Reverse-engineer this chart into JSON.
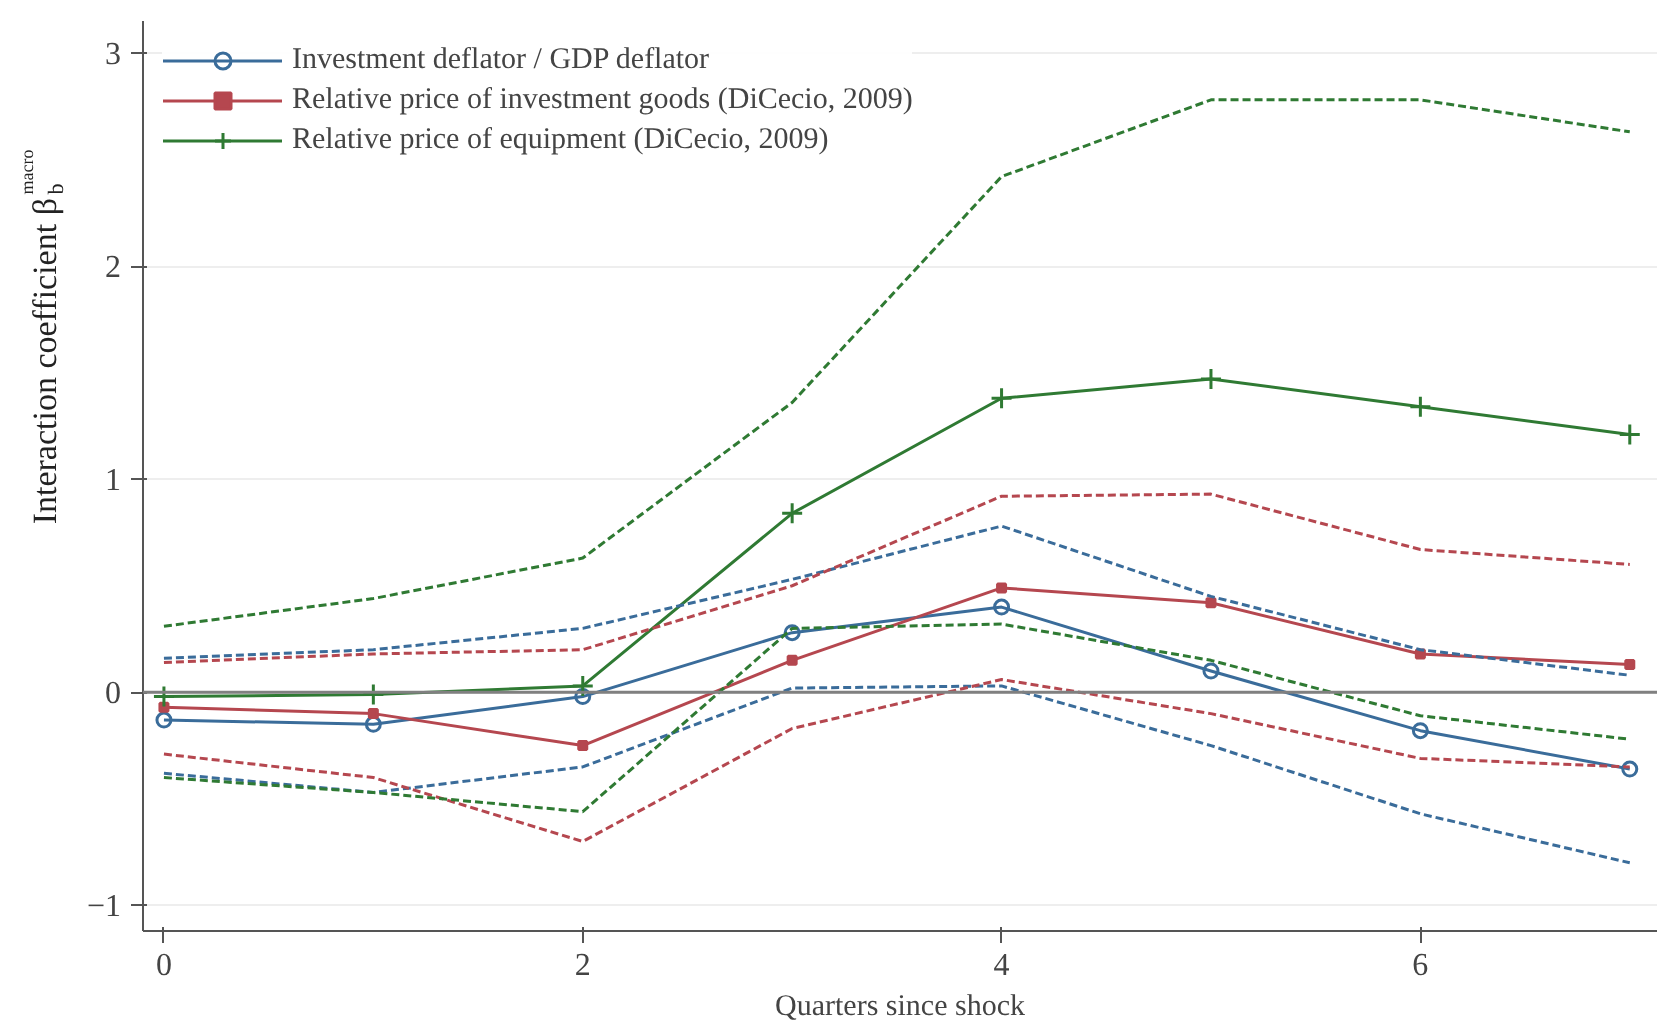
{
  "chart_data": {
    "type": "line",
    "xlabel": "Quarters since shock",
    "ylabel": "Interaction coefficient β$_{b}$$^{macro}$",
    "x": [
      0,
      1,
      2,
      3,
      4,
      5,
      6,
      7
    ],
    "xlim": [
      -0.1,
      7.13
    ],
    "xticks": [
      0,
      2,
      4,
      6
    ],
    "ylim": [
      -1.12,
      3.15
    ],
    "yticks": [
      -1,
      0,
      1,
      2,
      3
    ],
    "grid": "y",
    "legend": "top left",
    "line_style": "solid",
    "ref_lines": [
      {
        "axis": "y",
        "value": 0,
        "color": "#808080"
      }
    ],
    "series": [
      {
        "name": "Investment deflator / GDP deflator",
        "color": "#3a6c9a",
        "marker": "circle",
        "values": [
          -0.13,
          -0.15,
          -0.02,
          0.28,
          0.4,
          0.1,
          -0.18,
          -0.36
        ]
      },
      {
        "name": "Relative price of investment goods (DiCecio, 2009)",
        "color": "#b5474f",
        "marker": "square",
        "values": [
          -0.07,
          -0.1,
          -0.25,
          0.15,
          0.49,
          0.42,
          0.18,
          0.13
        ]
      },
      {
        "name": "Relative price of equipment (DiCecio, 2009)",
        "color": "#2f7a33",
        "marker": "cross",
        "values": [
          -0.02,
          -0.01,
          0.03,
          0.84,
          1.38,
          1.47,
          1.34,
          1.21
        ]
      },
      {
        "color": "#3a6c9a",
        "line_style": "dashed",
        "values": [
          -0.38,
          -0.47,
          -0.35,
          0.02,
          0.03,
          -0.25,
          -0.57,
          -0.8
        ]
      },
      {
        "color": "#3a6c9a",
        "line_style": "dashed",
        "values": [
          0.16,
          0.2,
          0.3,
          0.53,
          0.78,
          0.45,
          0.2,
          0.08
        ]
      },
      {
        "color": "#b5474f",
        "line_style": "dashed",
        "values": [
          -0.29,
          -0.4,
          -0.7,
          -0.17,
          0.06,
          -0.1,
          -0.31,
          -0.35
        ]
      },
      {
        "color": "#b5474f",
        "line_style": "dashed",
        "values": [
          0.14,
          0.18,
          0.2,
          0.5,
          0.92,
          0.93,
          0.67,
          0.6
        ]
      },
      {
        "color": "#2f7a33",
        "line_style": "dashed",
        "values": [
          -0.4,
          -0.47,
          -0.56,
          0.3,
          0.32,
          0.15,
          -0.11,
          -0.22
        ]
      },
      {
        "color": "#2f7a33",
        "line_style": "dashed",
        "values": [
          0.31,
          0.44,
          0.63,
          1.36,
          2.42,
          2.78,
          2.78,
          2.63
        ]
      }
    ]
  }
}
